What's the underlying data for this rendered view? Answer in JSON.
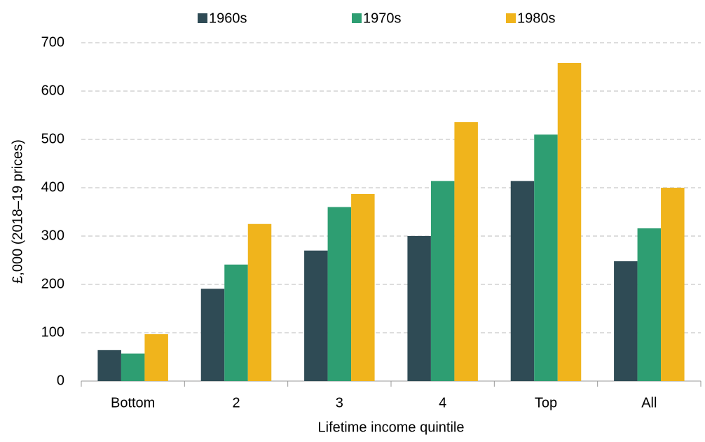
{
  "chart_data": {
    "type": "bar",
    "categories": [
      "Bottom",
      "2",
      "3",
      "4",
      "Top",
      "All"
    ],
    "series": [
      {
        "name": "1960s",
        "color": "#2f4b55",
        "values": [
          64,
          191,
          270,
          300,
          414,
          248
        ]
      },
      {
        "name": "1970s",
        "color": "#2e9e72",
        "values": [
          57,
          241,
          360,
          414,
          510,
          316
        ]
      },
      {
        "name": "1980s",
        "color": "#f0b41c",
        "values": [
          97,
          325,
          387,
          536,
          658,
          400
        ]
      }
    ],
    "x_label": "Lifetime income quintile",
    "y_label": "£,000 (2018–19 prices)",
    "ylim": [
      0,
      700
    ],
    "yticks": [
      0,
      100,
      200,
      300,
      400,
      500,
      600,
      700
    ],
    "grid": true,
    "legend": "top"
  }
}
